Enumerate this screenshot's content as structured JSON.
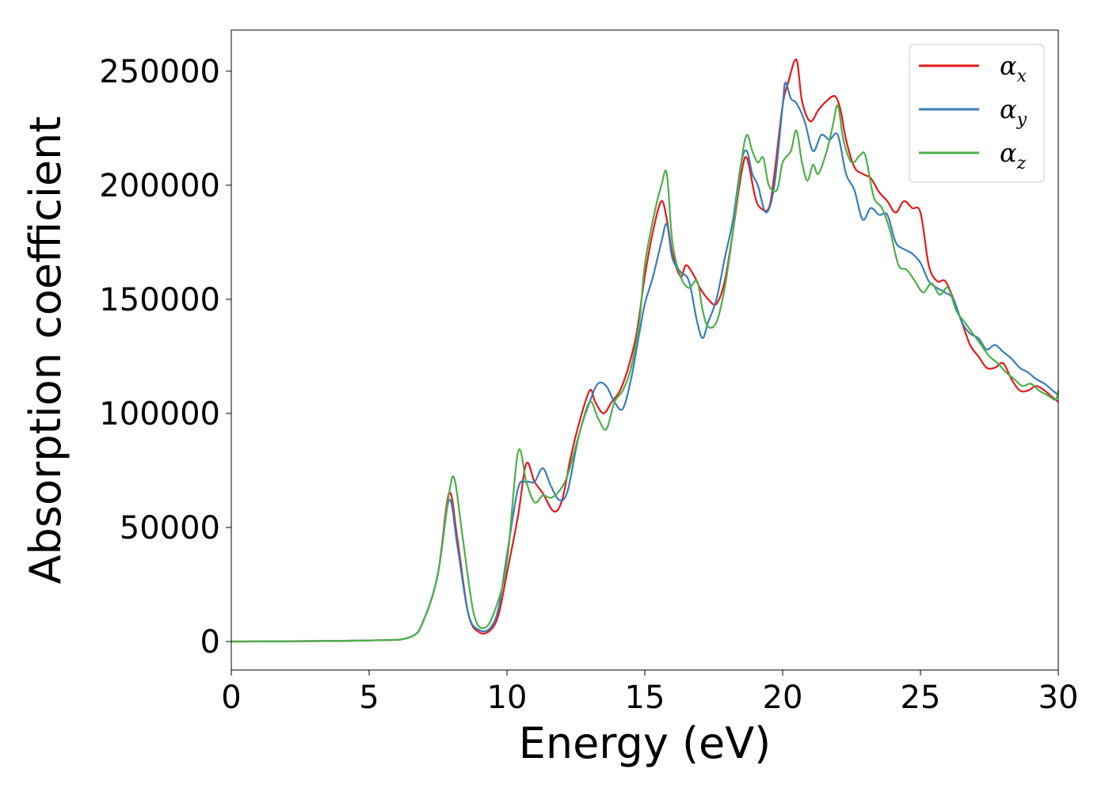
{
  "chart_data": {
    "type": "line",
    "xlabel": "Energy (eV)",
    "ylabel": "Absorption coefficient",
    "xlim": [
      0,
      30
    ],
    "ylim": [
      -12500,
      268000
    ],
    "xticks": [
      "0",
      "5",
      "10",
      "15",
      "20",
      "25",
      "30"
    ],
    "yticks": [
      "0",
      "50000",
      "100000",
      "150000",
      "200000",
      "250000"
    ],
    "grid": false,
    "legend_position": "top-right",
    "series": [
      {
        "name": "α",
        "subscript": "x",
        "color": "#e41a1c",
        "x": [
          0,
          5,
          6.5,
          7,
          7.5,
          7.9,
          8.2,
          8.6,
          9.0,
          9.4,
          9.7,
          10.0,
          10.4,
          10.7,
          11.0,
          11.3,
          11.7,
          12.0,
          12.3,
          12.6,
          13.0,
          13.2,
          13.5,
          13.8,
          14.1,
          14.4,
          14.7,
          15.0,
          15.3,
          15.6,
          15.8,
          16.0,
          16.3,
          16.5,
          16.8,
          17.0,
          17.3,
          17.6,
          17.9,
          18.2,
          18.5,
          18.7,
          19.0,
          19.2,
          19.5,
          19.7,
          20.0,
          20.2,
          20.5,
          20.7,
          21.0,
          21.3,
          21.6,
          21.9,
          22.1,
          22.3,
          22.6,
          22.9,
          23.2,
          23.5,
          23.8,
          24.1,
          24.4,
          24.7,
          25.0,
          25.3,
          25.6,
          25.9,
          26.2,
          26.5,
          26.8,
          27.1,
          27.4,
          27.7,
          28.0,
          28.3,
          28.6,
          28.9,
          29.2,
          29.5,
          29.8,
          30
        ],
        "y": [
          0,
          500,
          2000,
          10000,
          30000,
          65000,
          45000,
          12000,
          4000,
          5000,
          12000,
          30000,
          55000,
          78000,
          70000,
          65000,
          57000,
          62000,
          80000,
          95000,
          110000,
          105000,
          100000,
          105000,
          110000,
          120000,
          135000,
          160000,
          180000,
          193000,
          185000,
          170000,
          160000,
          165000,
          160000,
          155000,
          150000,
          148000,
          158000,
          180000,
          205000,
          212000,
          195000,
          190000,
          190000,
          205000,
          235000,
          245000,
          255000,
          237000,
          228000,
          233000,
          237000,
          239000,
          233000,
          220000,
          208000,
          205000,
          203000,
          197000,
          193000,
          188000,
          193000,
          190000,
          188000,
          165000,
          158000,
          158000,
          150000,
          140000,
          130000,
          125000,
          120000,
          120000,
          122000,
          115000,
          110000,
          110000,
          112000,
          110000,
          107000,
          105000
        ]
      },
      {
        "name": "α",
        "subscript": "y",
        "color": "#377eb8",
        "x": [
          0,
          5,
          6.5,
          7,
          7.5,
          7.9,
          8.2,
          8.6,
          9.0,
          9.4,
          9.7,
          10.0,
          10.4,
          10.7,
          11.0,
          11.3,
          11.6,
          11.9,
          12.2,
          12.6,
          13.0,
          13.3,
          13.6,
          13.9,
          14.2,
          14.5,
          14.8,
          15.0,
          15.3,
          15.6,
          15.8,
          16.0,
          16.3,
          16.6,
          16.9,
          17.1,
          17.3,
          17.6,
          17.9,
          18.2,
          18.5,
          18.7,
          18.9,
          19.1,
          19.4,
          19.7,
          20.0,
          20.1,
          20.3,
          20.5,
          20.8,
          21.1,
          21.4,
          21.7,
          22.0,
          22.3,
          22.6,
          22.9,
          23.2,
          23.5,
          23.8,
          24.1,
          24.4,
          24.7,
          25.0,
          25.3,
          25.6,
          25.9,
          26.2,
          26.5,
          26.8,
          27.1,
          27.4,
          27.7,
          28.0,
          28.3,
          28.6,
          28.9,
          29.2,
          29.5,
          29.8,
          30
        ],
        "y": [
          0,
          500,
          2000,
          10000,
          30000,
          62000,
          42000,
          12000,
          5000,
          6000,
          15000,
          38000,
          67000,
          70000,
          70000,
          76000,
          68000,
          62000,
          66000,
          90000,
          105000,
          113000,
          112000,
          105000,
          102000,
          115000,
          135000,
          148000,
          160000,
          175000,
          183000,
          168000,
          162000,
          158000,
          140000,
          133000,
          140000,
          150000,
          168000,
          185000,
          210000,
          215000,
          205000,
          200000,
          188000,
          200000,
          235000,
          245000,
          238000,
          236000,
          228000,
          215000,
          222000,
          220000,
          222000,
          205000,
          198000,
          185000,
          190000,
          187000,
          187000,
          175000,
          172000,
          170000,
          166000,
          158000,
          155000,
          153000,
          150000,
          140000,
          135000,
          133000,
          128000,
          130000,
          127000,
          124000,
          120000,
          118000,
          115000,
          113000,
          110000,
          108000
        ]
      },
      {
        "name": "α",
        "subscript": "z",
        "color": "#4daf4a",
        "x": [
          0,
          5,
          6.5,
          7,
          7.5,
          7.9,
          8.1,
          8.4,
          8.8,
          9.2,
          9.6,
          10.0,
          10.4,
          10.7,
          11.0,
          11.3,
          11.6,
          11.9,
          12.2,
          12.6,
          13.0,
          13.3,
          13.6,
          13.9,
          14.2,
          14.5,
          14.8,
          15.0,
          15.3,
          15.6,
          15.8,
          16.0,
          16.3,
          16.6,
          16.9,
          17.1,
          17.3,
          17.6,
          17.9,
          18.2,
          18.5,
          18.7,
          18.9,
          19.1,
          19.3,
          19.5,
          19.8,
          20.0,
          20.3,
          20.5,
          20.7,
          20.9,
          21.1,
          21.3,
          21.6,
          21.8,
          22.0,
          22.2,
          22.5,
          22.8,
          23.0,
          23.3,
          23.6,
          23.9,
          24.2,
          24.5,
          24.8,
          25.1,
          25.4,
          25.7,
          26.0,
          26.3,
          26.6,
          26.9,
          27.2,
          27.5,
          27.8,
          28.1,
          28.4,
          28.7,
          29.0,
          29.3,
          29.6,
          29.9,
          30
        ],
        "y": [
          0,
          500,
          2000,
          10000,
          30000,
          65000,
          71000,
          45000,
          12000,
          6000,
          15000,
          35000,
          83000,
          70000,
          61000,
          64000,
          63000,
          66000,
          73000,
          90000,
          105000,
          98000,
          93000,
          105000,
          110000,
          120000,
          140000,
          165000,
          185000,
          200000,
          205000,
          175000,
          160000,
          155000,
          158000,
          145000,
          138000,
          140000,
          155000,
          180000,
          210000,
          222000,
          215000,
          210000,
          212000,
          200000,
          198000,
          210000,
          215000,
          224000,
          210000,
          202000,
          209000,
          205000,
          215000,
          225000,
          235000,
          220000,
          210000,
          213000,
          213000,
          195000,
          190000,
          180000,
          165000,
          163000,
          158000,
          153000,
          157000,
          152000,
          155000,
          145000,
          140000,
          135000,
          130000,
          125000,
          122000,
          118000,
          115000,
          112000,
          113000,
          110000,
          108000,
          106000,
          110000
        ]
      }
    ]
  }
}
